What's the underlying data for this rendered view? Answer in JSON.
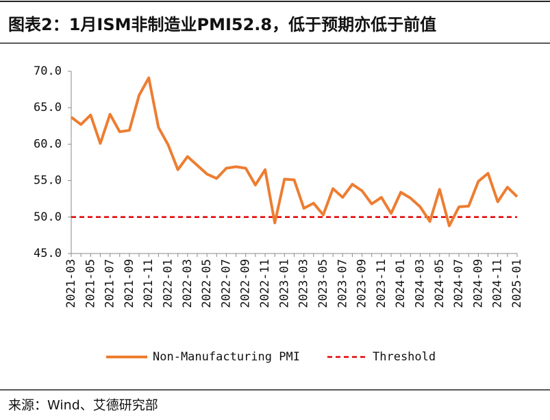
{
  "title": "图表2：1月ISM非制造业PMI52.8，低于预期亦低于前值",
  "source": "来源：Wind、艾德研究部",
  "chart_data": {
    "type": "line",
    "categories": [
      "2021-03",
      null,
      "2021-05",
      null,
      "2021-07",
      null,
      "2021-09",
      null,
      "2021-11",
      null,
      "2022-01",
      null,
      "2022-03",
      null,
      "2022-05",
      null,
      "2022-07",
      null,
      "2022-09",
      null,
      "2022-11",
      null,
      "2023-01",
      null,
      "2023-03",
      null,
      "2023-05",
      null,
      "2023-07",
      null,
      "2023-09",
      null,
      "2023-11",
      null,
      "2024-01",
      null,
      "2024-03",
      null,
      "2024-05",
      null,
      "2024-07",
      null,
      "2024-09",
      null,
      "2024-11",
      null,
      "2025-01"
    ],
    "series": [
      {
        "name": "Non-Manufacturing PMI",
        "color": "#ed7d31",
        "values": [
          63.7,
          62.7,
          64.0,
          60.1,
          64.1,
          61.7,
          61.9,
          66.7,
          69.1,
          62.3,
          59.9,
          56.5,
          58.3,
          57.1,
          55.9,
          55.3,
          56.7,
          56.9,
          56.7,
          54.4,
          56.5,
          49.2,
          55.2,
          55.1,
          51.2,
          51.9,
          50.3,
          53.9,
          52.7,
          54.5,
          53.6,
          51.8,
          52.7,
          50.5,
          53.4,
          52.6,
          51.4,
          49.4,
          53.8,
          48.8,
          51.4,
          51.5,
          54.9,
          56.0,
          52.1,
          54.1,
          52.8
        ]
      }
    ],
    "threshold": {
      "name": "Threshold",
      "value": 50,
      "color": "#e00000"
    },
    "ylim": [
      45,
      70
    ],
    "yticks": [
      {
        "value": 45,
        "label": "45.0"
      },
      {
        "value": 50,
        "label": "50.0"
      },
      {
        "value": 55,
        "label": "55.0"
      },
      {
        "value": 60,
        "label": "60.0"
      },
      {
        "value": 65,
        "label": "65.0"
      },
      {
        "value": 70,
        "label": "70.0"
      }
    ]
  }
}
